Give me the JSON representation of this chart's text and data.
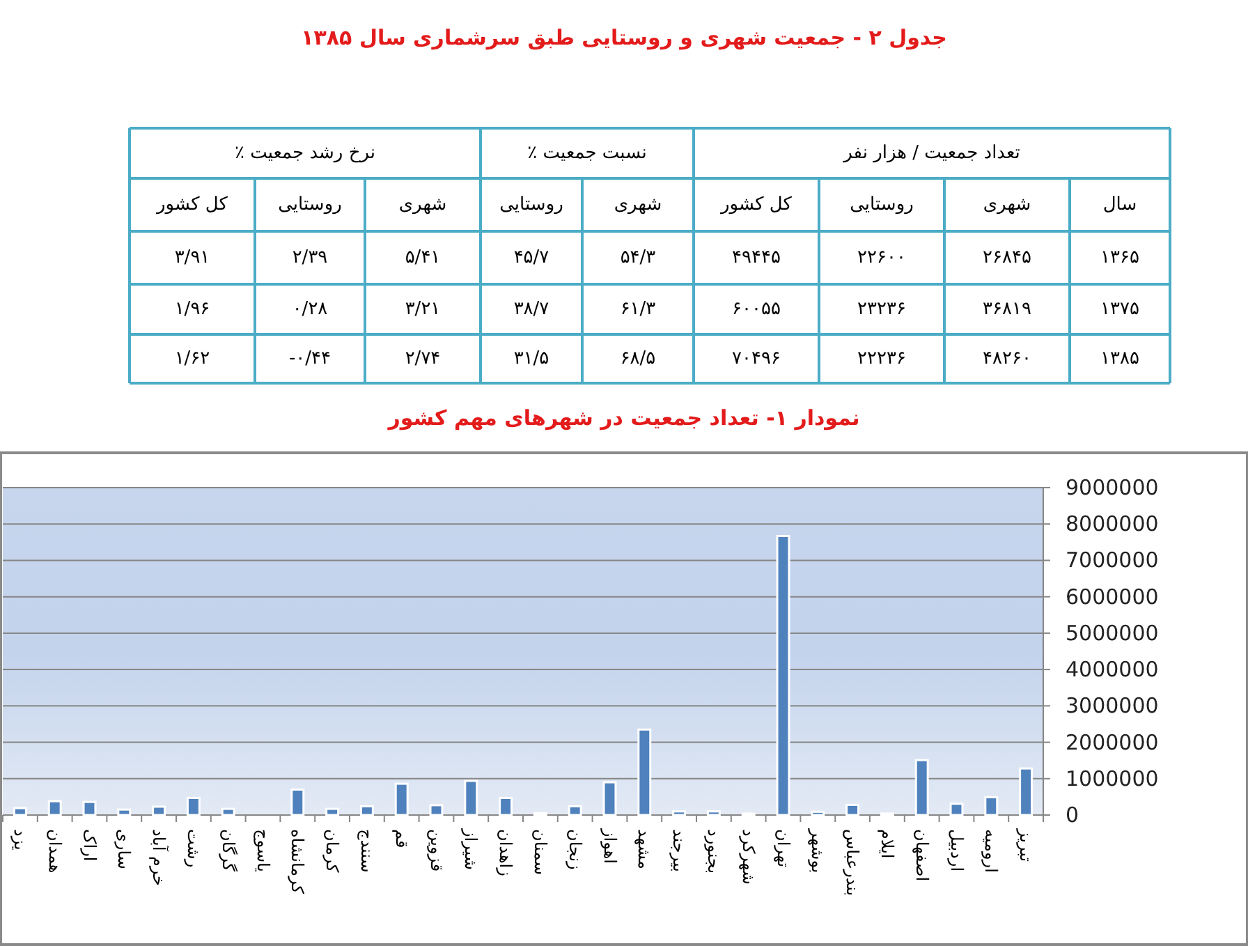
{
  "chart_data": [
    {
      "type": "other",
      "title": "جدول ۲ - جمعیت شهری و روستایی طبق سرشماری سال ۱۳۸۵",
      "annotations": [
        "تعداد جمعیت / هزار نفر",
        "نسبت جمعیت ٪",
        "نرخ رشد جمعیت ٪",
        "سال",
        "شهری",
        "روستایی",
        "کل کشور",
        "شهری",
        "روستایی",
        "شهری",
        "روستایی",
        "کل کشور",
        "۱۳۶۵",
        "۲۶۸۴۵",
        "۲۲۶۰۰",
        "۴۹۴۴۵",
        "۵۴/۳",
        "۴۵/۷",
        "۵/۴۱",
        "۲/۳۹",
        "۳/۹۱",
        "۱۳۷۵",
        "۳۶۸۱۹",
        "۲۳۲۳۶",
        "۶۰۰۵۵",
        "۶۱/۳",
        "۳۸/۷",
        "۳/۲۱",
        "۰/۲۸",
        "۱/۹۶",
        "۱۳۸۵",
        "۴۸۲۶۰",
        "۲۲۲۳۶",
        "۷۰۴۹۶",
        "۶۸/۵",
        "۳۱/۵",
        "۲/۷۴",
        "-۰/۴۴",
        "۱/۶۲"
      ]
    },
    {
      "type": "bar",
      "title": "نمودار ۱- تعداد جمعیت در شهرهای مهم کشور",
      "categories": [
        "یزد",
        "همدان",
        "اراک",
        "ساری",
        "خرم آباد",
        "رشت",
        "گرگان",
        "یاسوج",
        "کرمانشاه",
        "کرمان",
        "سنندج",
        "قم",
        "قزوین",
        "شیراز",
        "زاهدان",
        "سمنان",
        "زنجان",
        "اهواز",
        "مشهد",
        "بیرجند",
        "بجنورد",
        "شهرکرد",
        "تهران",
        "بوشهر",
        "بندرعباس",
        "ایلام",
        "اصفهان",
        "اردبیل",
        "ارومیه",
        "تبریز"
      ],
      "values": [
        190000,
        380000,
        360000,
        150000,
        230000,
        470000,
        170000,
        0,
        700000,
        170000,
        240000,
        860000,
        270000,
        940000,
        470000,
        50000,
        240000,
        900000,
        2350000,
        100000,
        100000,
        40000,
        7670000,
        90000,
        280000,
        40000,
        1510000,
        310000,
        490000,
        1280000
      ],
      "color": "#4f81bd",
      "ylim": [
        0,
        9000000
      ],
      "yticks": [
        0,
        1000000,
        2000000,
        3000000,
        4000000,
        5000000,
        6000000,
        7000000,
        8000000,
        9000000
      ],
      "grid": "y"
    }
  ]
}
